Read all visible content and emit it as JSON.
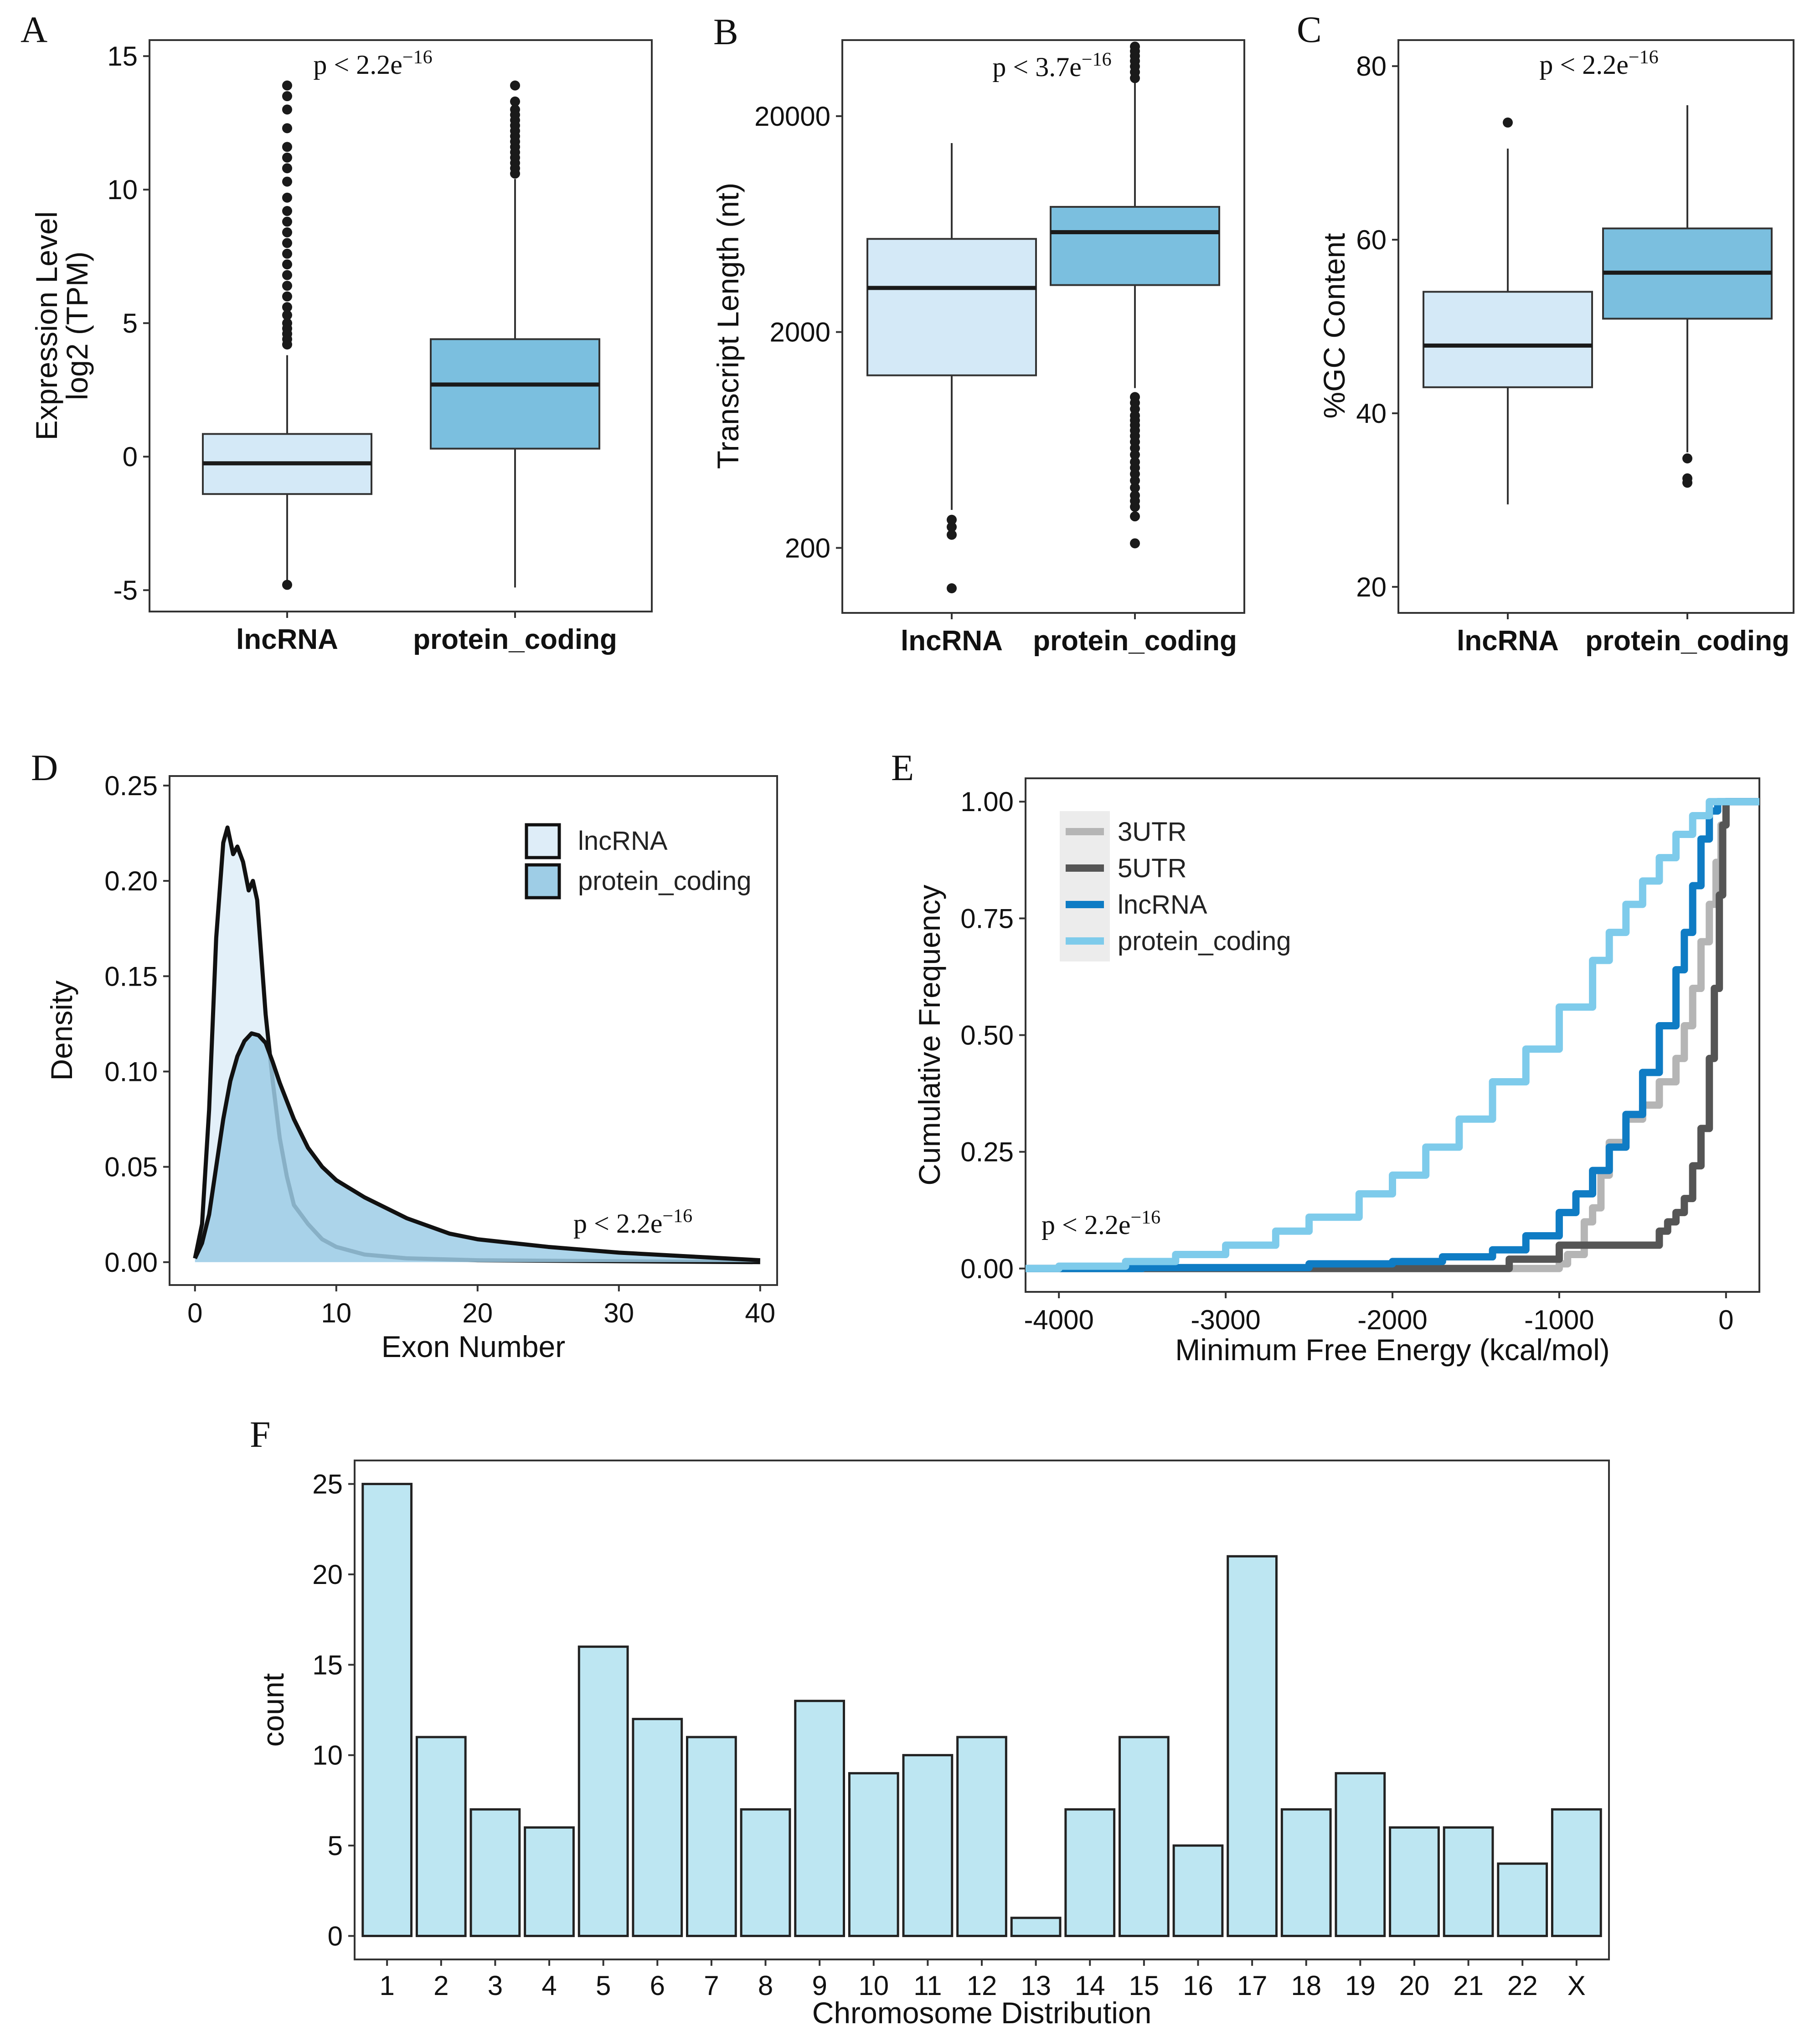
{
  "chart_data": [
    {
      "panel": "A",
      "type": "box",
      "ylabel_line1": "Expression Level",
      "ylabel_line2": "log2 (TPM)",
      "ylim": [
        -5.8,
        15.6
      ],
      "yticks": [
        "15",
        "10",
        "5",
        "0",
        "-5"
      ],
      "ytick_values": [
        15,
        10,
        5,
        0,
        -5
      ],
      "categories": [
        "lncRNA",
        "protein_coding"
      ],
      "annotation": {
        "prefix": "p < 2.2e",
        "exp": "−16"
      },
      "boxes": [
        {
          "name": "lncRNA",
          "whislo": -4.8,
          "q1": -1.4,
          "med": -0.25,
          "q3": 0.85,
          "whishi": 3.8,
          "color": "#d4e9f7",
          "outliers": [
            -4.8,
            4.2,
            4.4,
            4.6,
            4.8,
            5.0,
            5.3,
            5.6,
            6.0,
            6.4,
            6.8,
            7.2,
            7.6,
            8.0,
            8.4,
            8.8,
            9.2,
            9.7,
            10.3,
            10.8,
            11.2,
            11.6,
            12.3,
            13.0,
            13.5,
            13.9
          ]
        },
        {
          "name": "protein_coding",
          "whislo": -4.9,
          "q1": 0.3,
          "med": 2.7,
          "q3": 4.4,
          "whishi": 10.4,
          "color": "#7bbfdf",
          "outliers": [
            10.6,
            10.8,
            11.0,
            11.2,
            11.4,
            11.6,
            11.8,
            12.0,
            12.2,
            12.4,
            12.6,
            12.8,
            13.0,
            13.3,
            13.9
          ]
        }
      ]
    },
    {
      "panel": "B",
      "type": "box",
      "scale": "log10",
      "ylabel": "Transcript Length (nt)",
      "ylim": [
        100,
        45000
      ],
      "yticks": [
        "20000",
        "2000",
        "200"
      ],
      "ytick_values": [
        20000,
        2000,
        200
      ],
      "categories": [
        "lncRNA",
        "protein_coding"
      ],
      "annotation": {
        "prefix": "p < 3.7e",
        "exp": "−16"
      },
      "boxes": [
        {
          "name": "lncRNA",
          "whislo": 300,
          "q1": 1260,
          "med": 3200,
          "q3": 5400,
          "whishi": 15000,
          "color": "#d4e9f7",
          "outliers": [
            230,
            250,
            270,
            130
          ]
        },
        {
          "name": "protein_coding",
          "whislo": 1100,
          "q1": 3300,
          "med": 5800,
          "q3": 7600,
          "whishi": 29000,
          "color": "#7bbfdf",
          "outliers": [
            1000,
            940,
            880,
            820,
            780,
            740,
            700,
            660,
            620,
            580,
            540,
            500,
            470,
            440,
            410,
            380,
            350,
            330,
            310,
            280,
            210,
            30000,
            32000,
            34000,
            36000,
            38000,
            40000,
            42000
          ]
        }
      ]
    },
    {
      "panel": "C",
      "type": "box",
      "ylabel": "%GC Content",
      "ylim": [
        17,
        83
      ],
      "yticks": [
        "80",
        "60",
        "40",
        "20"
      ],
      "ytick_values": [
        80,
        60,
        40,
        20
      ],
      "categories": [
        "lncRNA",
        "protein_coding"
      ],
      "annotation": {
        "prefix": "p < 2.2e",
        "exp": "−16"
      },
      "boxes": [
        {
          "name": "lncRNA",
          "whislo": 29.5,
          "q1": 43,
          "med": 47.8,
          "q3": 54,
          "whishi": 70.5,
          "color": "#d4e9f7",
          "outliers": [
            73.5
          ]
        },
        {
          "name": "protein_coding",
          "whislo": 35.5,
          "q1": 50.9,
          "med": 56.2,
          "q3": 61.3,
          "whishi": 75.5,
          "color": "#7bbfdf",
          "outliers": [
            34.8,
            32.5,
            32.0
          ]
        }
      ]
    },
    {
      "panel": "D",
      "type": "area",
      "xlabel": "Exon Number",
      "ylabel": "Density",
      "xlim": [
        -1.8,
        41.2
      ],
      "ylim": [
        -0.012,
        0.255
      ],
      "xticks": [
        "0",
        "10",
        "20",
        "30",
        "40"
      ],
      "xtick_values": [
        0,
        10,
        20,
        30,
        40
      ],
      "yticks": [
        "0.25",
        "0.20",
        "0.15",
        "0.10",
        "0.05",
        "0.00"
      ],
      "ytick_values": [
        0.25,
        0.2,
        0.15,
        0.1,
        0.05,
        0.0
      ],
      "annotation": {
        "prefix": "p < 2.2e",
        "exp": "−16"
      },
      "legend": [
        "lncRNA",
        "protein_coding"
      ],
      "series": [
        {
          "name": "lncRNA",
          "fill": "#deedf8",
          "stroke": "#111111",
          "x": [
            0,
            0.5,
            1,
            1.5,
            2,
            2.3,
            2.7,
            3,
            3.4,
            3.8,
            4.1,
            4.4,
            4.7,
            5,
            5.5,
            6,
            6.5,
            7,
            8,
            9,
            10,
            12,
            15,
            20,
            30,
            40
          ],
          "y": [
            0.002,
            0.02,
            0.08,
            0.17,
            0.22,
            0.228,
            0.214,
            0.218,
            0.21,
            0.195,
            0.2,
            0.19,
            0.16,
            0.13,
            0.095,
            0.065,
            0.045,
            0.03,
            0.02,
            0.012,
            0.008,
            0.004,
            0.002,
            0.001,
            0.0005,
            0.0
          ]
        },
        {
          "name": "protein_coding",
          "fill": "#9ecde6",
          "stroke": "#111111",
          "x": [
            0,
            0.5,
            1,
            1.5,
            2,
            2.5,
            3,
            3.5,
            4,
            4.5,
            5,
            5.5,
            6,
            7,
            8,
            9,
            10,
            12,
            15,
            18,
            20,
            25,
            30,
            35,
            40
          ],
          "y": [
            0.002,
            0.01,
            0.025,
            0.05,
            0.075,
            0.095,
            0.108,
            0.116,
            0.12,
            0.119,
            0.115,
            0.105,
            0.094,
            0.075,
            0.06,
            0.05,
            0.043,
            0.034,
            0.023,
            0.015,
            0.012,
            0.008,
            0.005,
            0.003,
            0.001
          ]
        }
      ]
    },
    {
      "panel": "E",
      "type": "line",
      "xlabel": "Minimum Free Energy (kcal/mol)",
      "ylabel": "Cumulative Frequency",
      "xlim": [
        -4200,
        200
      ],
      "ylim": [
        -0.05,
        1.05
      ],
      "xticks": [
        "-4000",
        "-3000",
        "-2000",
        "-1000",
        "0"
      ],
      "xtick_values": [
        -4000,
        -3000,
        -2000,
        -1000,
        0
      ],
      "yticks": [
        "1.00",
        "0.75",
        "0.50",
        "0.25",
        "0.00"
      ],
      "ytick_values": [
        1.0,
        0.75,
        0.5,
        0.25,
        0.0
      ],
      "annotation": {
        "prefix": "p < 2.2e",
        "exp": "−16"
      },
      "legend": [
        "3UTR",
        "5UTR",
        "lncRNA",
        "protein_coding"
      ],
      "series": [
        {
          "name": "3UTR",
          "color": "#b5b5b5",
          "x": [
            -4200,
            -1100,
            -1000,
            -950,
            -850,
            -800,
            -750,
            -700,
            -600,
            -500,
            -400,
            -300,
            -250,
            -200,
            -150,
            -100,
            -60,
            -30,
            0,
            200
          ],
          "y": [
            0,
            0,
            0.01,
            0.03,
            0.1,
            0.13,
            0.2,
            0.27,
            0.32,
            0.35,
            0.4,
            0.45,
            0.52,
            0.6,
            0.7,
            0.78,
            0.87,
            0.95,
            1.0,
            1.0
          ]
        },
        {
          "name": "5UTR",
          "color": "#555555",
          "x": [
            -4200,
            -1700,
            -1300,
            -1000,
            -500,
            -400,
            -350,
            -300,
            -250,
            -200,
            -150,
            -100,
            -70,
            -40,
            -20,
            0,
            200
          ],
          "y": [
            0,
            0,
            0.02,
            0.05,
            0.05,
            0.08,
            0.1,
            0.12,
            0.15,
            0.22,
            0.3,
            0.45,
            0.6,
            0.8,
            0.95,
            1.0,
            1.0
          ]
        },
        {
          "name": "lncRNA",
          "color": "#0f7cc4",
          "x": [
            -4200,
            -3500,
            -2500,
            -2000,
            -1700,
            -1400,
            -1200,
            -1000,
            -900,
            -800,
            -700,
            -600,
            -500,
            -400,
            -300,
            -250,
            -200,
            -150,
            -100,
            -50,
            0,
            200
          ],
          "y": [
            0,
            0.002,
            0.01,
            0.015,
            0.025,
            0.04,
            0.07,
            0.12,
            0.16,
            0.21,
            0.26,
            0.33,
            0.42,
            0.52,
            0.64,
            0.72,
            0.82,
            0.92,
            0.98,
            1.0,
            1.0,
            1.0
          ]
        },
        {
          "name": "protein_coding",
          "color": "#7ecbeb",
          "x": [
            -4200,
            -4000,
            -3600,
            -3300,
            -3000,
            -2700,
            -2500,
            -2200,
            -2000,
            -1800,
            -1600,
            -1400,
            -1200,
            -1000,
            -800,
            -700,
            -600,
            -500,
            -400,
            -300,
            -200,
            -100,
            0,
            200
          ],
          "y": [
            0,
            0.005,
            0.015,
            0.03,
            0.05,
            0.08,
            0.11,
            0.16,
            0.2,
            0.26,
            0.32,
            0.4,
            0.47,
            0.56,
            0.66,
            0.72,
            0.78,
            0.83,
            0.88,
            0.93,
            0.97,
            1.0,
            1.0,
            1.0
          ]
        }
      ]
    },
    {
      "panel": "F",
      "type": "bar",
      "xlabel": "Chromosome Distribution",
      "ylabel": "count",
      "ylim": [
        -1.3,
        26.3
      ],
      "yticks": [
        "25",
        "20",
        "15",
        "10",
        "5",
        "0"
      ],
      "ytick_values": [
        25,
        20,
        15,
        10,
        5,
        0
      ],
      "categories": [
        "1",
        "2",
        "3",
        "4",
        "5",
        "6",
        "7",
        "8",
        "9",
        "10",
        "11",
        "12",
        "13",
        "14",
        "15",
        "16",
        "17",
        "18",
        "19",
        "20",
        "21",
        "22",
        "X"
      ],
      "values": [
        25,
        11,
        7,
        6,
        16,
        12,
        11,
        7,
        13,
        9,
        10,
        11,
        1,
        7,
        11,
        5,
        21,
        7,
        9,
        6,
        6,
        4,
        7
      ],
      "color": "#bde6f2"
    }
  ],
  "colors": {
    "light_box": "#d4e9f7",
    "dark_box": "#7bbfdf",
    "bar_fill": "#bde6f2"
  }
}
